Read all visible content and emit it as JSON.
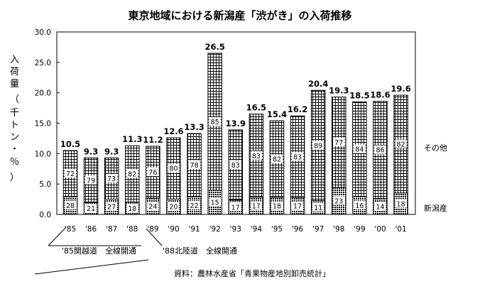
{
  "chart_data": {
    "type": "bar",
    "title": "東京地域における新潟産「渋がき」の入荷推移",
    "ylabel": "入荷量（千トン・％）",
    "ylim": [
      0,
      30
    ],
    "ytick_labels": [
      "0.0",
      "5.0",
      "10.0",
      "15.0",
      "20.0",
      "25.0",
      "30.0"
    ],
    "categories": [
      "'85",
      "'86",
      "'87",
      "'88",
      "'89",
      "'90",
      "'91",
      "'92",
      "'93",
      "'94",
      "'95",
      "'96",
      "'97",
      "'98",
      "'99",
      "'00",
      "'01"
    ],
    "values": [
      10.5,
      9.3,
      9.3,
      11.3,
      11.2,
      12.6,
      13.3,
      26.5,
      13.9,
      16.5,
      15.4,
      16.2,
      20.4,
      19.3,
      18.5,
      18.6,
      19.6
    ],
    "total_labels": [
      "10.5",
      "9.3",
      "9.3",
      "11.3",
      "11.2",
      "12.6",
      "13.3",
      "26.5",
      "13.9",
      "16.5",
      "15.4",
      "16.2",
      "20.4",
      "19.3",
      "18.5",
      "18.6",
      "19.6"
    ],
    "series": [
      {
        "name": "新潟産",
        "pct": [
          "28",
          "21",
          "27",
          "18",
          "24",
          "20",
          "22",
          "15",
          "17",
          "17",
          "18",
          "17",
          "11",
          "23",
          "16",
          "14",
          "18"
        ]
      },
      {
        "name": "その他",
        "pct": [
          "72",
          "79",
          "73",
          "82",
          "76",
          "80",
          "78",
          "85",
          "83",
          "83",
          "82",
          "83",
          "89",
          "77",
          "84",
          "86",
          "82"
        ]
      }
    ],
    "annotations": [
      "'85関越道　全線開通",
      "'88北陸道　全線開通"
    ],
    "source": "資料：農林水産省「青果物産地別卸売統計」",
    "grid": false
  }
}
